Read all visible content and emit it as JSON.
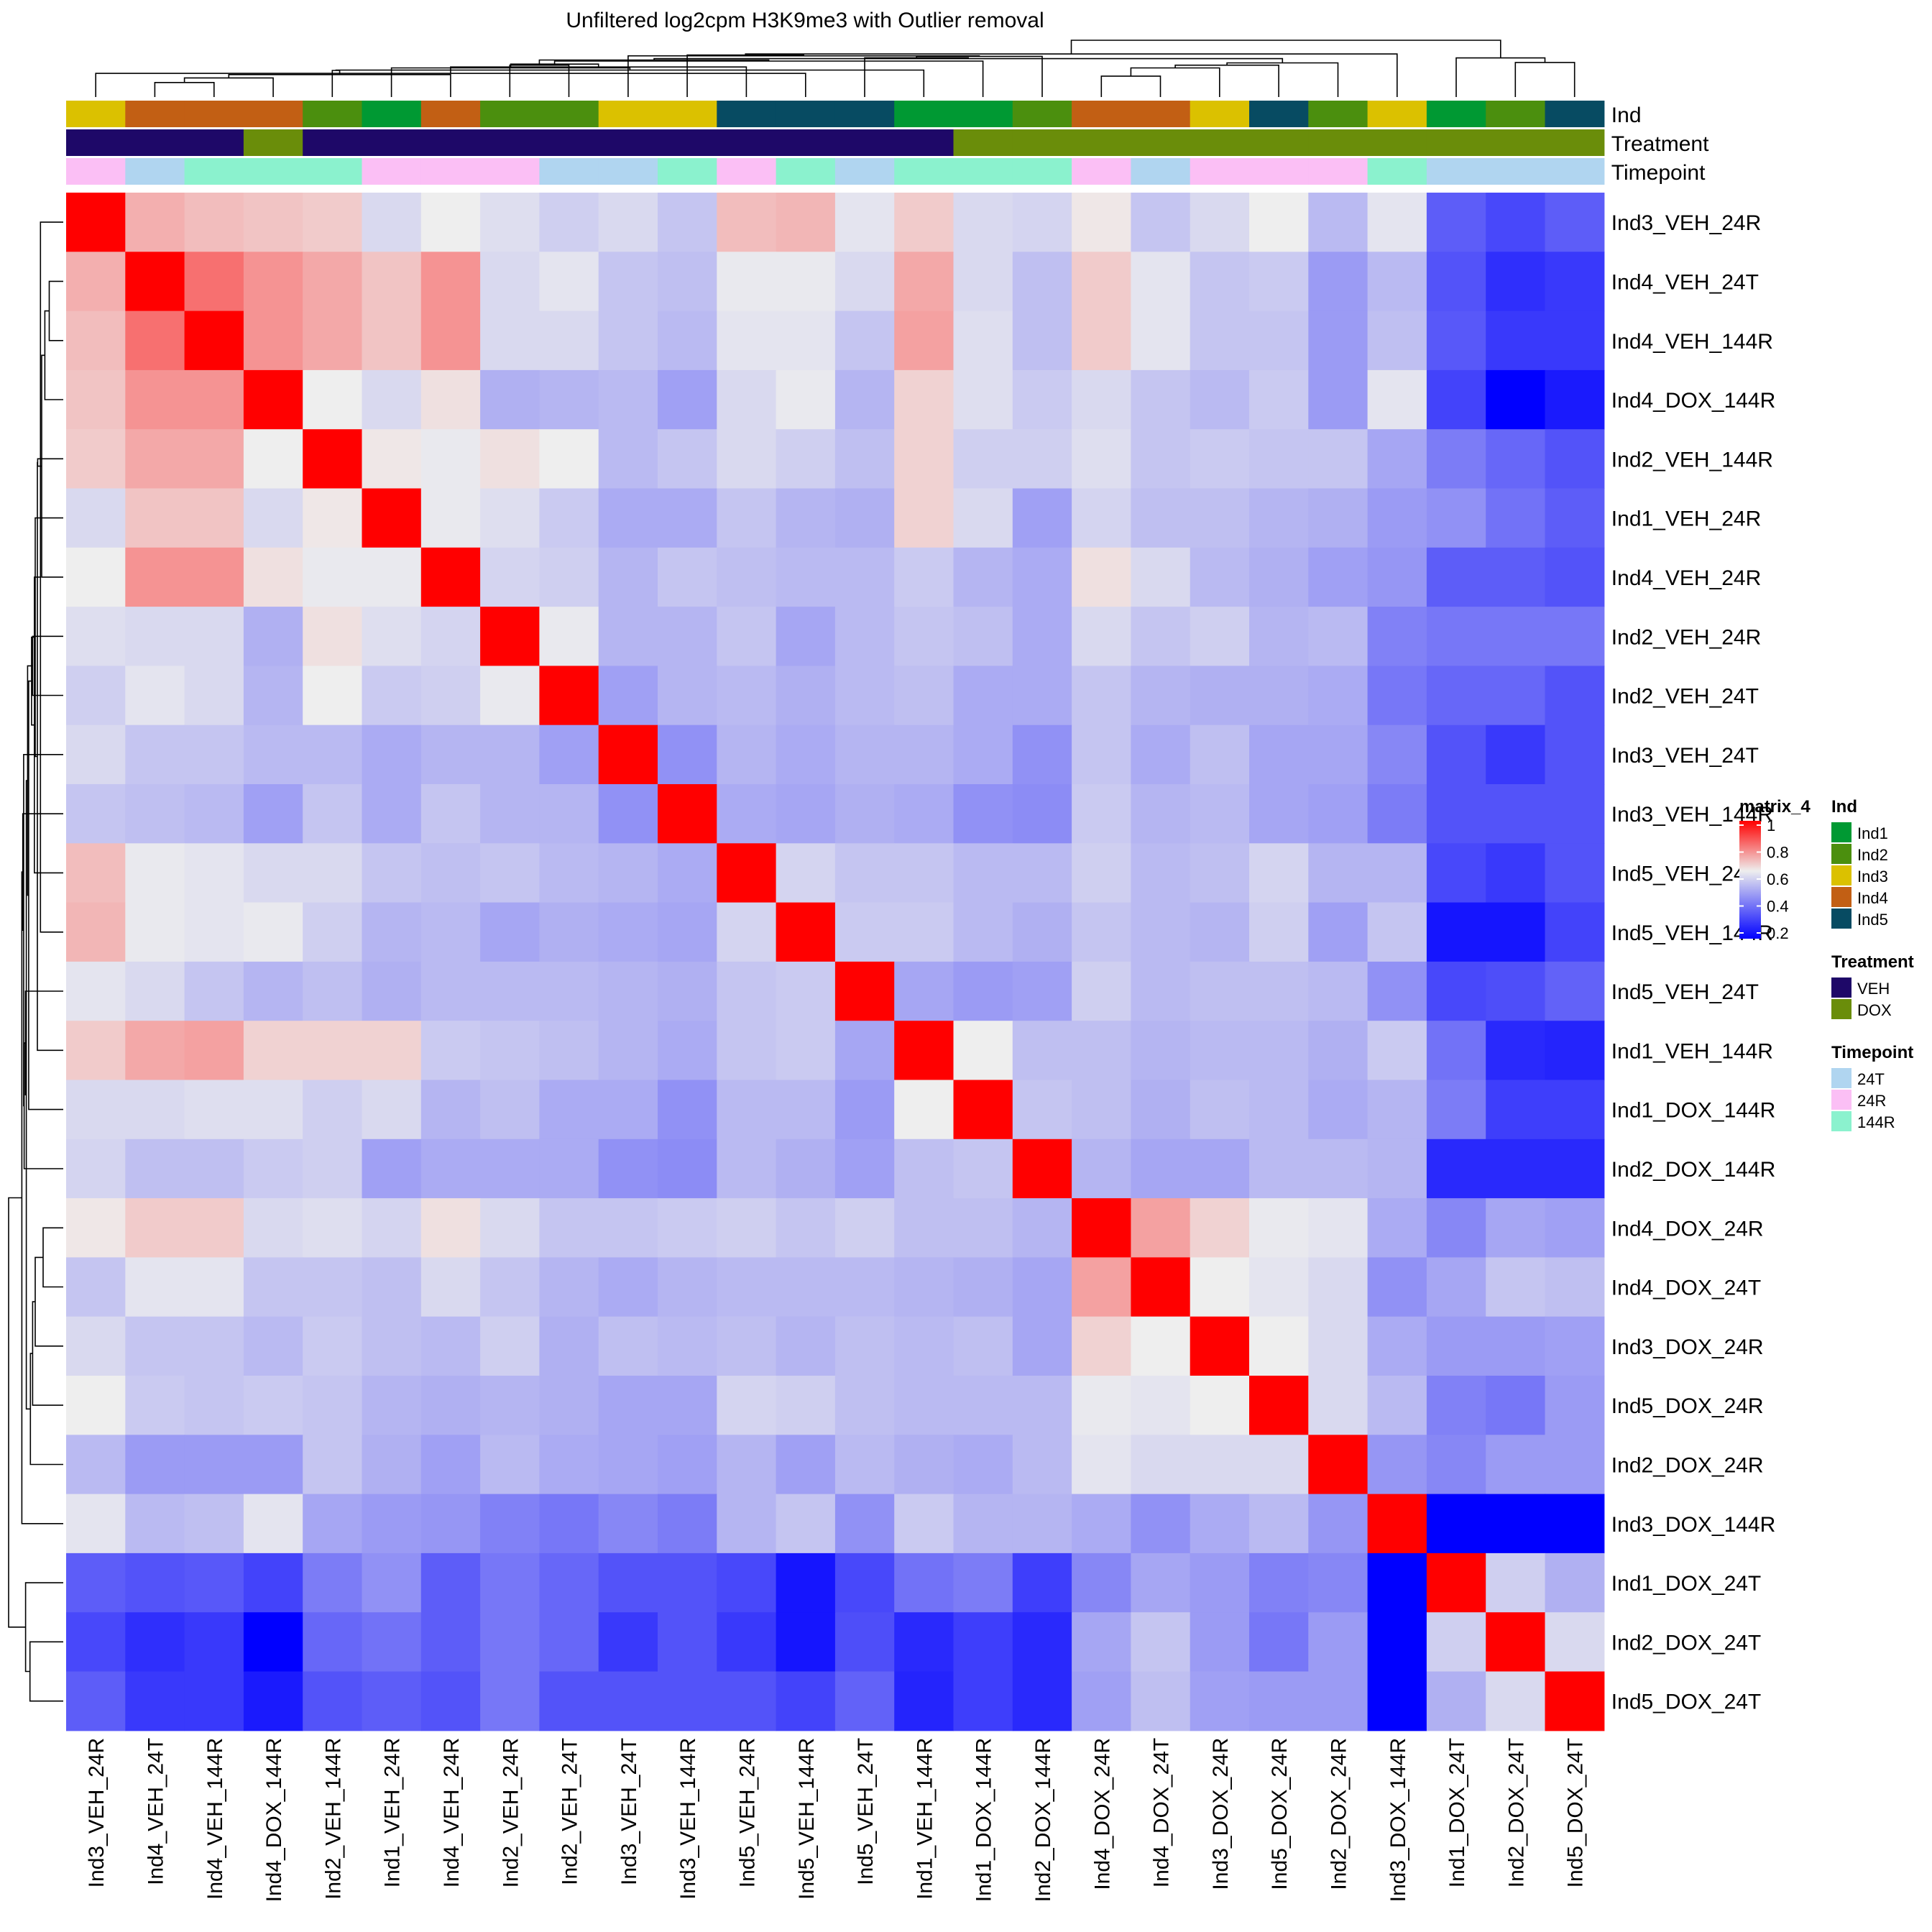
{
  "chart_data": {
    "type": "heatmap",
    "title": "Unfiltered log2cpm H3K9me3 with Outlier removal",
    "labels": [
      "Ind3_VEH_24R",
      "Ind4_VEH_24T",
      "Ind4_VEH_144R",
      "Ind4_DOX_144R",
      "Ind2_VEH_144R",
      "Ind1_VEH_24R",
      "Ind4_VEH_24R",
      "Ind2_VEH_24R",
      "Ind2_VEH_24T",
      "Ind3_VEH_24T",
      "Ind3_VEH_144R",
      "Ind5_VEH_24R",
      "Ind5_VEH_144R",
      "Ind5_VEH_24T",
      "Ind1_VEH_144R",
      "Ind1_DOX_144R",
      "Ind2_DOX_144R",
      "Ind4_DOX_24R",
      "Ind4_DOX_24T",
      "Ind3_DOX_24R",
      "Ind5_DOX_24R",
      "Ind2_DOX_24R",
      "Ind3_DOX_144R",
      "Ind1_DOX_24T",
      "Ind2_DOX_24T",
      "Ind5_DOX_24T"
    ],
    "values": [
      [
        1.0,
        0.75,
        0.73,
        0.72,
        0.71,
        0.62,
        0.66,
        0.63,
        0.6,
        0.62,
        0.58,
        0.73,
        0.74,
        0.64,
        0.71,
        0.62,
        0.61,
        0.67,
        0.58,
        0.62,
        0.66,
        0.56,
        0.64,
        0.38,
        0.34,
        0.38
      ],
      [
        0.75,
        1.0,
        0.84,
        0.79,
        0.76,
        0.72,
        0.79,
        0.62,
        0.64,
        0.58,
        0.57,
        0.65,
        0.65,
        0.62,
        0.76,
        0.62,
        0.57,
        0.71,
        0.64,
        0.58,
        0.59,
        0.5,
        0.56,
        0.36,
        0.29,
        0.31
      ],
      [
        0.73,
        0.84,
        1.0,
        0.79,
        0.76,
        0.72,
        0.79,
        0.62,
        0.62,
        0.58,
        0.56,
        0.64,
        0.64,
        0.58,
        0.77,
        0.63,
        0.57,
        0.71,
        0.64,
        0.58,
        0.58,
        0.5,
        0.57,
        0.37,
        0.31,
        0.31
      ],
      [
        0.72,
        0.79,
        0.79,
        1.0,
        0.66,
        0.62,
        0.68,
        0.54,
        0.55,
        0.56,
        0.51,
        0.62,
        0.65,
        0.55,
        0.7,
        0.63,
        0.59,
        0.62,
        0.58,
        0.56,
        0.59,
        0.5,
        0.64,
        0.33,
        0.2,
        0.25
      ],
      [
        0.71,
        0.76,
        0.76,
        0.66,
        1.0,
        0.67,
        0.65,
        0.68,
        0.66,
        0.56,
        0.58,
        0.62,
        0.6,
        0.57,
        0.7,
        0.6,
        0.6,
        0.63,
        0.58,
        0.59,
        0.58,
        0.58,
        0.52,
        0.44,
        0.4,
        0.36
      ],
      [
        0.62,
        0.72,
        0.72,
        0.62,
        0.67,
        1.0,
        0.65,
        0.63,
        0.59,
        0.53,
        0.53,
        0.58,
        0.55,
        0.54,
        0.7,
        0.62,
        0.51,
        0.61,
        0.57,
        0.57,
        0.55,
        0.54,
        0.5,
        0.48,
        0.42,
        0.38
      ],
      [
        0.66,
        0.79,
        0.79,
        0.68,
        0.65,
        0.65,
        1.0,
        0.61,
        0.6,
        0.55,
        0.58,
        0.57,
        0.56,
        0.56,
        0.59,
        0.55,
        0.53,
        0.68,
        0.62,
        0.56,
        0.54,
        0.51,
        0.49,
        0.38,
        0.38,
        0.36
      ],
      [
        0.63,
        0.62,
        0.62,
        0.54,
        0.68,
        0.63,
        0.61,
        1.0,
        0.65,
        0.55,
        0.55,
        0.58,
        0.52,
        0.56,
        0.58,
        0.57,
        0.53,
        0.62,
        0.58,
        0.6,
        0.55,
        0.56,
        0.45,
        0.43,
        0.43,
        0.43
      ],
      [
        0.6,
        0.64,
        0.62,
        0.55,
        0.66,
        0.59,
        0.6,
        0.65,
        1.0,
        0.51,
        0.55,
        0.56,
        0.54,
        0.56,
        0.57,
        0.53,
        0.53,
        0.58,
        0.55,
        0.54,
        0.54,
        0.53,
        0.43,
        0.4,
        0.4,
        0.36
      ],
      [
        0.62,
        0.58,
        0.58,
        0.56,
        0.56,
        0.53,
        0.55,
        0.55,
        0.51,
        1.0,
        0.48,
        0.55,
        0.53,
        0.55,
        0.55,
        0.53,
        0.48,
        0.58,
        0.53,
        0.57,
        0.52,
        0.52,
        0.46,
        0.36,
        0.31,
        0.36
      ],
      [
        0.58,
        0.57,
        0.56,
        0.51,
        0.58,
        0.53,
        0.58,
        0.55,
        0.55,
        0.48,
        1.0,
        0.53,
        0.52,
        0.54,
        0.53,
        0.48,
        0.47,
        0.59,
        0.55,
        0.56,
        0.52,
        0.51,
        0.44,
        0.36,
        0.36,
        0.36
      ],
      [
        0.73,
        0.65,
        0.64,
        0.62,
        0.62,
        0.58,
        0.57,
        0.58,
        0.56,
        0.55,
        0.53,
        1.0,
        0.61,
        0.58,
        0.58,
        0.56,
        0.56,
        0.6,
        0.56,
        0.57,
        0.61,
        0.55,
        0.55,
        0.34,
        0.31,
        0.36
      ],
      [
        0.74,
        0.65,
        0.64,
        0.65,
        0.6,
        0.55,
        0.56,
        0.52,
        0.54,
        0.53,
        0.52,
        0.61,
        1.0,
        0.59,
        0.59,
        0.56,
        0.54,
        0.58,
        0.56,
        0.55,
        0.6,
        0.51,
        0.58,
        0.24,
        0.24,
        0.33
      ],
      [
        0.64,
        0.62,
        0.58,
        0.55,
        0.57,
        0.54,
        0.56,
        0.56,
        0.56,
        0.55,
        0.54,
        0.58,
        0.59,
        1.0,
        0.52,
        0.5,
        0.51,
        0.6,
        0.56,
        0.57,
        0.57,
        0.56,
        0.48,
        0.34,
        0.35,
        0.39
      ],
      [
        0.71,
        0.76,
        0.77,
        0.7,
        0.7,
        0.7,
        0.59,
        0.58,
        0.57,
        0.55,
        0.53,
        0.58,
        0.59,
        0.52,
        1.0,
        0.66,
        0.57,
        0.57,
        0.55,
        0.56,
        0.56,
        0.54,
        0.59,
        0.42,
        0.28,
        0.27
      ],
      [
        0.62,
        0.62,
        0.63,
        0.63,
        0.6,
        0.62,
        0.55,
        0.57,
        0.53,
        0.53,
        0.48,
        0.56,
        0.56,
        0.5,
        0.66,
        1.0,
        0.58,
        0.57,
        0.54,
        0.57,
        0.56,
        0.53,
        0.55,
        0.44,
        0.32,
        0.32
      ],
      [
        0.61,
        0.57,
        0.57,
        0.59,
        0.6,
        0.51,
        0.53,
        0.53,
        0.53,
        0.48,
        0.47,
        0.56,
        0.54,
        0.51,
        0.57,
        0.58,
        1.0,
        0.55,
        0.52,
        0.52,
        0.56,
        0.56,
        0.55,
        0.28,
        0.28,
        0.28
      ],
      [
        0.67,
        0.71,
        0.71,
        0.62,
        0.63,
        0.61,
        0.68,
        0.62,
        0.58,
        0.58,
        0.59,
        0.6,
        0.58,
        0.6,
        0.57,
        0.57,
        0.55,
        1.0,
        0.77,
        0.7,
        0.65,
        0.64,
        0.53,
        0.46,
        0.52,
        0.51
      ],
      [
        0.58,
        0.64,
        0.64,
        0.58,
        0.58,
        0.57,
        0.62,
        0.58,
        0.55,
        0.53,
        0.55,
        0.56,
        0.56,
        0.56,
        0.55,
        0.54,
        0.52,
        0.77,
        1.0,
        0.66,
        0.64,
        0.62,
        0.48,
        0.52,
        0.58,
        0.57
      ],
      [
        0.62,
        0.58,
        0.58,
        0.56,
        0.59,
        0.57,
        0.56,
        0.6,
        0.54,
        0.57,
        0.56,
        0.57,
        0.55,
        0.57,
        0.56,
        0.57,
        0.52,
        0.7,
        0.66,
        1.0,
        0.66,
        0.62,
        0.53,
        0.5,
        0.5,
        0.51
      ],
      [
        0.66,
        0.59,
        0.58,
        0.59,
        0.58,
        0.55,
        0.54,
        0.55,
        0.54,
        0.52,
        0.52,
        0.61,
        0.6,
        0.57,
        0.56,
        0.56,
        0.56,
        0.65,
        0.64,
        0.66,
        1.0,
        0.62,
        0.56,
        0.45,
        0.43,
        0.5
      ],
      [
        0.56,
        0.5,
        0.5,
        0.5,
        0.58,
        0.54,
        0.51,
        0.56,
        0.53,
        0.52,
        0.51,
        0.55,
        0.51,
        0.56,
        0.54,
        0.53,
        0.56,
        0.64,
        0.62,
        0.62,
        0.62,
        1.0,
        0.49,
        0.46,
        0.5,
        0.5
      ],
      [
        0.64,
        0.56,
        0.57,
        0.64,
        0.52,
        0.5,
        0.49,
        0.45,
        0.43,
        0.46,
        0.44,
        0.55,
        0.58,
        0.48,
        0.59,
        0.55,
        0.55,
        0.53,
        0.48,
        0.53,
        0.56,
        0.49,
        1.0,
        0.2,
        0.2,
        0.2
      ],
      [
        0.38,
        0.36,
        0.37,
        0.33,
        0.44,
        0.48,
        0.38,
        0.43,
        0.4,
        0.36,
        0.36,
        0.34,
        0.24,
        0.34,
        0.42,
        0.44,
        0.32,
        0.46,
        0.52,
        0.5,
        0.45,
        0.46,
        0.2,
        1.0,
        0.6,
        0.54
      ],
      [
        0.34,
        0.29,
        0.31,
        0.2,
        0.4,
        0.42,
        0.38,
        0.43,
        0.4,
        0.31,
        0.36,
        0.31,
        0.24,
        0.35,
        0.28,
        0.32,
        0.28,
        0.52,
        0.58,
        0.5,
        0.43,
        0.5,
        0.2,
        0.6,
        1.0,
        0.62
      ],
      [
        0.38,
        0.31,
        0.31,
        0.25,
        0.36,
        0.38,
        0.36,
        0.43,
        0.36,
        0.36,
        0.36,
        0.36,
        0.33,
        0.39,
        0.27,
        0.32,
        0.28,
        0.51,
        0.57,
        0.51,
        0.5,
        0.5,
        0.2,
        0.54,
        0.62,
        1.0
      ]
    ],
    "color_scale": {
      "name": "matrix_4",
      "ticks": [
        "1",
        "0.8",
        "0.6",
        "0.4",
        "0.2"
      ],
      "tick_values": [
        1,
        0.8,
        0.6,
        0.4,
        0.2
      ],
      "low": "#0000FF",
      "mid": "#EEEEEE",
      "high": "#FF0000",
      "mid_value": 0.66
    },
    "annotations": [
      {
        "name": "Ind",
        "levels": [
          {
            "label": "Ind1",
            "color": "#009933"
          },
          {
            "label": "Ind2",
            "color": "#4B8F0E"
          },
          {
            "label": "Ind3",
            "color": "#DBC100"
          },
          {
            "label": "Ind4",
            "color": "#C25F14"
          },
          {
            "label": "Ind5",
            "color": "#074B62"
          }
        ],
        "values": [
          "Ind3",
          "Ind4",
          "Ind4",
          "Ind4",
          "Ind2",
          "Ind1",
          "Ind4",
          "Ind2",
          "Ind2",
          "Ind3",
          "Ind3",
          "Ind5",
          "Ind5",
          "Ind5",
          "Ind1",
          "Ind1",
          "Ind2",
          "Ind4",
          "Ind4",
          "Ind3",
          "Ind5",
          "Ind2",
          "Ind3",
          "Ind1",
          "Ind2",
          "Ind5"
        ]
      },
      {
        "name": "Treatment",
        "levels": [
          {
            "label": "VEH",
            "color": "#1E0868"
          },
          {
            "label": "DOX",
            "color": "#6A8D0A"
          }
        ],
        "values": [
          "VEH",
          "VEH",
          "VEH",
          "DOX",
          "VEH",
          "VEH",
          "VEH",
          "VEH",
          "VEH",
          "VEH",
          "VEH",
          "VEH",
          "VEH",
          "VEH",
          "VEH",
          "DOX",
          "DOX",
          "DOX",
          "DOX",
          "DOX",
          "DOX",
          "DOX",
          "DOX",
          "DOX",
          "DOX",
          "DOX"
        ]
      },
      {
        "name": "Timepoint",
        "levels": [
          {
            "label": "24T",
            "color": "#B0D5F0"
          },
          {
            "label": "24R",
            "color": "#FBBFF5"
          },
          {
            "label": "144R",
            "color": "#8BF2CE"
          }
        ],
        "values": [
          "24R",
          "24T",
          "144R",
          "144R",
          "144R",
          "24R",
          "24R",
          "24R",
          "24T",
          "24T",
          "144R",
          "24R",
          "144R",
          "24T",
          "144R",
          "144R",
          "144R",
          "24R",
          "24T",
          "24R",
          "24R",
          "24R",
          "144R",
          "24T",
          "24T",
          "24T"
        ]
      }
    ]
  }
}
